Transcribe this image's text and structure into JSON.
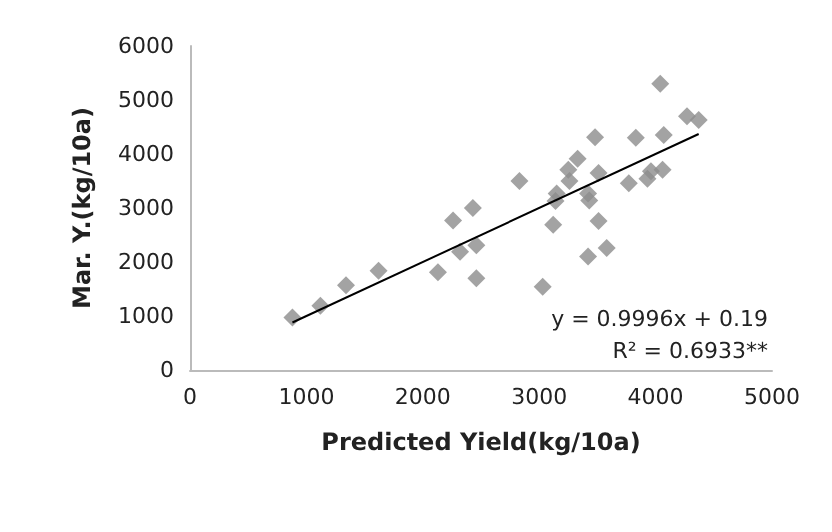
{
  "chart_data": {
    "type": "scatter",
    "xlabel": "Predicted Yield(kg/10a)",
    "ylabel": "Mar. Y.(kg/10a)",
    "xlim": [
      0,
      5000
    ],
    "xticks": [
      0,
      1000,
      2000,
      3000,
      4000,
      5000
    ],
    "ylim": [
      0,
      6000
    ],
    "yticks": [
      0,
      1000,
      2000,
      3000,
      4000,
      5000,
      6000
    ],
    "grid": false,
    "marker": "diamond",
    "annotations": [
      "y = 0.9996x + 0.19",
      "R² = 0.6933**"
    ],
    "series": [
      {
        "color": "#8c8c8c",
        "x": [
          880,
          1120,
          1340,
          1620,
          2130,
          2260,
          2430,
          2320,
          2460,
          2460,
          4040,
          4270,
          4370,
          3480,
          3830,
          4070,
          2830,
          3330,
          3250,
          3260,
          3510,
          3150,
          3140,
          3420,
          3430,
          3770,
          3930,
          4060,
          3960,
          3120,
          3510,
          3420,
          3580,
          3030
        ],
        "values": [
          970,
          1190,
          1570,
          1840,
          1810,
          2770,
          3000,
          2190,
          2310,
          1700,
          5300,
          4700,
          4630,
          4310,
          4300,
          4350,
          3500,
          3910,
          3710,
          3500,
          3650,
          3270,
          3130,
          3270,
          3140,
          3460,
          3540,
          3710,
          3680,
          2690,
          2760,
          2100,
          2260,
          1540
        ]
      },
      {
        "type": "line",
        "color": "#000000",
        "marker": "none",
        "line_style": "solid",
        "x": [
          880,
          4370
        ],
        "values": [
          880,
          4370
        ]
      }
    ]
  }
}
